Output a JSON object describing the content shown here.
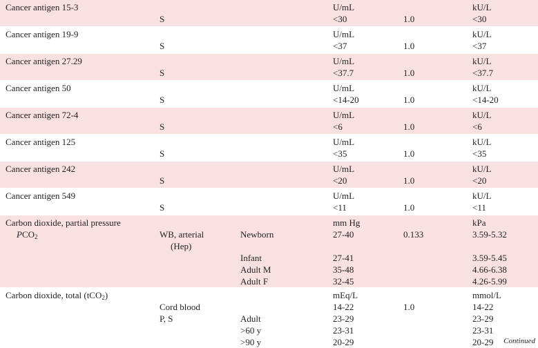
{
  "antigens": [
    {
      "name": "Cancer antigen 15-3",
      "specimen": "S",
      "conv_unit": "U/mL",
      "conv_range": "<30",
      "factor": "1.0",
      "si_unit": "kU/L",
      "si_range": "<30"
    },
    {
      "name": "Cancer antigen 19-9",
      "specimen": "S",
      "conv_unit": "U/mL",
      "conv_range": "<37",
      "factor": "1.0",
      "si_unit": "kU/L",
      "si_range": "<37"
    },
    {
      "name": "Cancer antigen 27.29",
      "specimen": "S",
      "conv_unit": "U/mL",
      "conv_range": "<37.7",
      "factor": "1.0",
      "si_unit": "kU/L",
      "si_range": "<37.7"
    },
    {
      "name": "Cancer antigen 50",
      "specimen": "S",
      "conv_unit": "U/mL",
      "conv_range": "<14-20",
      "factor": "1.0",
      "si_unit": "kU/L",
      "si_range": "<14-20"
    },
    {
      "name": "Cancer antigen 72-4",
      "specimen": "S",
      "conv_unit": "U/mL",
      "conv_range": "<6",
      "factor": "1.0",
      "si_unit": "kU/L",
      "si_range": "<6"
    },
    {
      "name": "Cancer antigen 125",
      "specimen": "S",
      "conv_unit": "U/mL",
      "conv_range": "<35",
      "factor": "1.0",
      "si_unit": "kU/L",
      "si_range": "<35"
    },
    {
      "name": "Cancer antigen 242",
      "specimen": "S",
      "conv_unit": "U/mL",
      "conv_range": "<20",
      "factor": "1.0",
      "si_unit": "kU/L",
      "si_range": "<20"
    },
    {
      "name": "Cancer antigen 549",
      "specimen": "S",
      "conv_unit": "U/mL",
      "conv_range": "<11",
      "factor": "1.0",
      "si_unit": "kU/L",
      "si_range": "<11"
    }
  ],
  "pco2": {
    "name": "Carbon dioxide, partial pressure",
    "abbr_italic": "P",
    "abbr": "CO",
    "abbr_sub": "2",
    "specimen": "WB, arterial",
    "specimen2": "(Hep)",
    "conv_unit": "mm Hg",
    "factor": "0.133",
    "si_unit": "kPa",
    "groups": [
      {
        "group": "Newborn",
        "conv": "27-40",
        "si": "3.59-5.32"
      },
      {
        "group": "Infant",
        "conv": "27-41",
        "si": "3.59-5.45"
      },
      {
        "group": "Adult M",
        "conv": "35-48",
        "si": "4.66-6.38"
      },
      {
        "group": "Adult F",
        "conv": "32-45",
        "si": "4.26-5.99"
      }
    ]
  },
  "tco2": {
    "name": "Carbon dioxide, total (tCO",
    "name_sub": "2",
    "name_end": ")",
    "conv_unit": "mEq/L",
    "factor": "1.0",
    "si_unit": "mmol/L",
    "cord": {
      "specimen": "Cord blood",
      "conv": "14-22",
      "si": "14-22"
    },
    "specimen": "P, S",
    "groups": [
      {
        "group": "Adult",
        "conv": "23-29",
        "si": "23-29"
      },
      {
        "group": ">60 y",
        "conv": "23-31",
        "si": "23-31"
      },
      {
        "group": ">90 y",
        "conv": "20-29",
        "si": "20-29"
      }
    ]
  },
  "footer": {
    "continued": "Continued"
  }
}
